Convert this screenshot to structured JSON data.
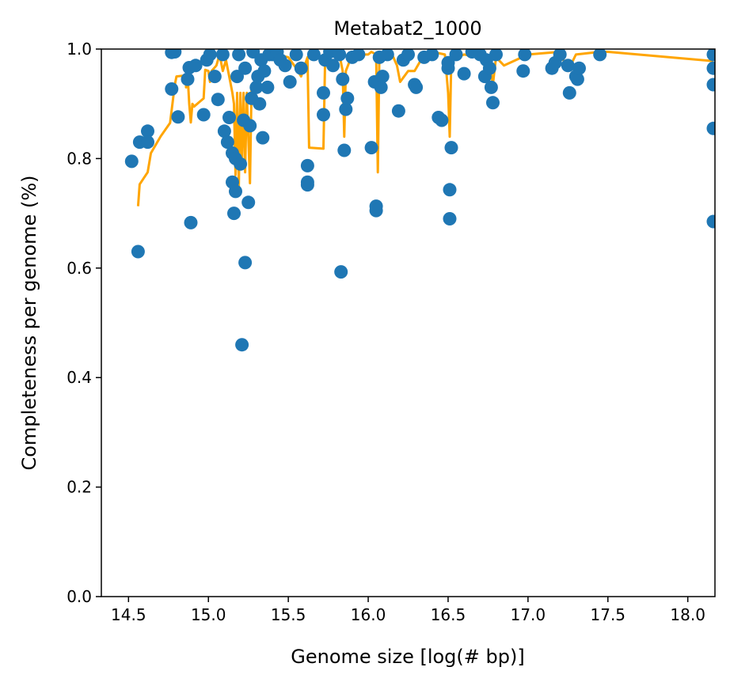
{
  "chart_data": {
    "type": "scatter",
    "title": "Metabat2_1000",
    "xlabel": "Genome size [log(# bp)]",
    "ylabel": "Completeness per genome (%)",
    "xlim": [
      14.33,
      18.17
    ],
    "ylim": [
      0.0,
      1.0
    ],
    "xticks": [
      14.5,
      15.0,
      15.5,
      16.0,
      16.5,
      17.0,
      17.5,
      18.0
    ],
    "xtick_labels": [
      "14.5",
      "15.0",
      "15.5",
      "16.0",
      "16.5",
      "17.0",
      "17.5",
      "18.0"
    ],
    "yticks": [
      0.0,
      0.2,
      0.4,
      0.6,
      0.8,
      1.0
    ],
    "ytick_labels": [
      "0.0",
      "0.2",
      "0.4",
      "0.6",
      "0.8",
      "1.0"
    ],
    "grid": false,
    "series": [
      {
        "kind": "scatter",
        "color": "#1f77b4",
        "points": [
          [
            14.52,
            0.795
          ],
          [
            14.56,
            0.63
          ],
          [
            14.57,
            0.83
          ],
          [
            14.62,
            0.85
          ],
          [
            14.62,
            0.83
          ],
          [
            14.77,
            0.927
          ],
          [
            14.77,
            0.994
          ],
          [
            14.79,
            0.995
          ],
          [
            14.81,
            0.876
          ],
          [
            14.87,
            0.945
          ],
          [
            14.88,
            0.966
          ],
          [
            14.89,
            0.683
          ],
          [
            14.92,
            0.97
          ],
          [
            14.97,
            0.88
          ],
          [
            14.99,
            0.98
          ],
          [
            15.01,
            0.99
          ],
          [
            15.04,
            0.95
          ],
          [
            15.06,
            0.908
          ],
          [
            15.09,
            0.99
          ],
          [
            15.1,
            0.85
          ],
          [
            15.12,
            0.83
          ],
          [
            15.13,
            0.875
          ],
          [
            15.15,
            0.81
          ],
          [
            15.15,
            0.757
          ],
          [
            15.16,
            0.7
          ],
          [
            15.17,
            0.74
          ],
          [
            15.17,
            0.8
          ],
          [
            15.18,
            0.95
          ],
          [
            15.19,
            0.99
          ],
          [
            15.2,
            0.79
          ],
          [
            15.21,
            0.46
          ],
          [
            15.22,
            0.87
          ],
          [
            15.23,
            0.61
          ],
          [
            15.23,
            0.965
          ],
          [
            15.25,
            0.72
          ],
          [
            15.26,
            0.86
          ],
          [
            15.27,
            0.91
          ],
          [
            15.28,
            0.995
          ],
          [
            15.3,
            0.93
          ],
          [
            15.31,
            0.95
          ],
          [
            15.32,
            0.9
          ],
          [
            15.33,
            0.98
          ],
          [
            15.34,
            0.838
          ],
          [
            15.35,
            0.96
          ],
          [
            15.37,
            0.93
          ],
          [
            15.38,
            0.99
          ],
          [
            15.4,
            0.99
          ],
          [
            15.43,
            0.995
          ],
          [
            15.45,
            0.98
          ],
          [
            15.48,
            0.97
          ],
          [
            15.51,
            0.94
          ],
          [
            15.55,
            0.99
          ],
          [
            15.58,
            0.965
          ],
          [
            15.62,
            0.787
          ],
          [
            15.62,
            0.752
          ],
          [
            15.62,
            0.757
          ],
          [
            15.66,
            0.99
          ],
          [
            15.72,
            0.92
          ],
          [
            15.72,
            0.88
          ],
          [
            15.73,
            0.98
          ],
          [
            15.76,
            0.995
          ],
          [
            15.78,
            0.97
          ],
          [
            15.82,
            0.99
          ],
          [
            15.83,
            0.593
          ],
          [
            15.84,
            0.945
          ],
          [
            15.85,
            0.815
          ],
          [
            15.86,
            0.89
          ],
          [
            15.87,
            0.91
          ],
          [
            15.9,
            0.985
          ],
          [
            15.94,
            0.99
          ],
          [
            16.02,
            0.82
          ],
          [
            16.04,
            0.94
          ],
          [
            16.05,
            0.713
          ],
          [
            16.05,
            0.705
          ],
          [
            16.07,
            0.985
          ],
          [
            16.08,
            0.93
          ],
          [
            16.09,
            0.95
          ],
          [
            16.12,
            0.99
          ],
          [
            16.19,
            0.887
          ],
          [
            16.22,
            0.98
          ],
          [
            16.25,
            0.99
          ],
          [
            16.29,
            0.935
          ],
          [
            16.3,
            0.93
          ],
          [
            16.35,
            0.985
          ],
          [
            16.4,
            0.99
          ],
          [
            16.44,
            0.875
          ],
          [
            16.46,
            0.87
          ],
          [
            16.5,
            0.965
          ],
          [
            16.5,
            0.975
          ],
          [
            16.51,
            0.743
          ],
          [
            16.51,
            0.69
          ],
          [
            16.52,
            0.82
          ],
          [
            16.55,
            0.99
          ],
          [
            16.6,
            0.955
          ],
          [
            16.65,
            0.995
          ],
          [
            16.7,
            0.99
          ],
          [
            16.73,
            0.95
          ],
          [
            16.74,
            0.98
          ],
          [
            16.76,
            0.965
          ],
          [
            16.77,
            0.93
          ],
          [
            16.78,
            0.902
          ],
          [
            16.8,
            0.99
          ],
          [
            16.97,
            0.96
          ],
          [
            16.98,
            0.99
          ],
          [
            17.15,
            0.965
          ],
          [
            17.17,
            0.975
          ],
          [
            17.2,
            0.99
          ],
          [
            17.25,
            0.97
          ],
          [
            17.26,
            0.92
          ],
          [
            17.3,
            0.95
          ],
          [
            17.31,
            0.945
          ],
          [
            17.32,
            0.965
          ],
          [
            17.45,
            0.99
          ],
          [
            18.16,
            0.99
          ],
          [
            18.16,
            0.965
          ],
          [
            18.16,
            0.935
          ],
          [
            18.16,
            0.855
          ],
          [
            18.16,
            0.685
          ]
        ]
      },
      {
        "kind": "line",
        "color": "#ffa500",
        "points": [
          [
            14.56,
            0.713
          ],
          [
            14.57,
            0.753
          ],
          [
            14.62,
            0.775
          ],
          [
            14.64,
            0.81
          ],
          [
            14.7,
            0.84
          ],
          [
            14.76,
            0.865
          ],
          [
            14.79,
            0.935
          ],
          [
            14.8,
            0.95
          ],
          [
            14.86,
            0.952
          ],
          [
            14.86,
            0.93
          ],
          [
            14.87,
            0.952
          ],
          [
            14.88,
            0.9
          ],
          [
            14.89,
            0.866
          ],
          [
            14.9,
            0.9
          ],
          [
            14.91,
            0.895
          ],
          [
            14.97,
            0.91
          ],
          [
            14.98,
            0.962
          ],
          [
            15.0,
            0.96
          ],
          [
            15.01,
            0.94
          ],
          [
            15.02,
            0.96
          ],
          [
            15.05,
            0.97
          ],
          [
            15.07,
            0.99
          ],
          [
            15.09,
            0.96
          ],
          [
            15.11,
            0.98
          ],
          [
            15.13,
            0.95
          ],
          [
            15.15,
            0.92
          ],
          [
            15.16,
            0.9
          ],
          [
            15.17,
            0.77
          ],
          [
            15.18,
            0.92
          ],
          [
            15.19,
            0.75
          ],
          [
            15.2,
            0.92
          ],
          [
            15.21,
            0.8
          ],
          [
            15.22,
            0.92
          ],
          [
            15.23,
            0.775
          ],
          [
            15.24,
            0.92
          ],
          [
            15.26,
            0.755
          ],
          [
            15.27,
            0.93
          ],
          [
            15.3,
            0.935
          ],
          [
            15.32,
            0.96
          ],
          [
            15.35,
            0.99
          ],
          [
            15.38,
            0.98
          ],
          [
            15.42,
            0.99
          ],
          [
            15.5,
            0.985
          ],
          [
            15.55,
            0.965
          ],
          [
            15.58,
            0.95
          ],
          [
            15.62,
            0.985
          ],
          [
            15.63,
            0.82
          ],
          [
            15.72,
            0.818
          ],
          [
            15.73,
            0.98
          ],
          [
            15.8,
            0.995
          ],
          [
            15.82,
            0.99
          ],
          [
            15.84,
            0.96
          ],
          [
            15.85,
            0.84
          ],
          [
            15.86,
            0.96
          ],
          [
            15.9,
            0.99
          ],
          [
            16.0,
            0.99
          ],
          [
            16.02,
            0.995
          ],
          [
            16.05,
            0.99
          ],
          [
            16.06,
            0.775
          ],
          [
            16.07,
            0.995
          ],
          [
            16.15,
            0.99
          ],
          [
            16.18,
            0.97
          ],
          [
            16.2,
            0.94
          ],
          [
            16.25,
            0.96
          ],
          [
            16.29,
            0.96
          ],
          [
            16.35,
            0.99
          ],
          [
            16.4,
            0.995
          ],
          [
            16.48,
            0.99
          ],
          [
            16.5,
            0.92
          ],
          [
            16.51,
            0.84
          ],
          [
            16.52,
            0.98
          ],
          [
            16.6,
            0.99
          ],
          [
            16.7,
            0.985
          ],
          [
            16.77,
            0.955
          ],
          [
            16.78,
            0.935
          ],
          [
            16.8,
            0.985
          ],
          [
            16.85,
            0.97
          ],
          [
            17.0,
            0.99
          ],
          [
            17.2,
            0.995
          ],
          [
            17.25,
            0.96
          ],
          [
            17.3,
            0.99
          ],
          [
            17.45,
            0.995
          ],
          [
            17.5,
            0.995
          ],
          [
            18.16,
            0.978
          ]
        ]
      }
    ]
  }
}
